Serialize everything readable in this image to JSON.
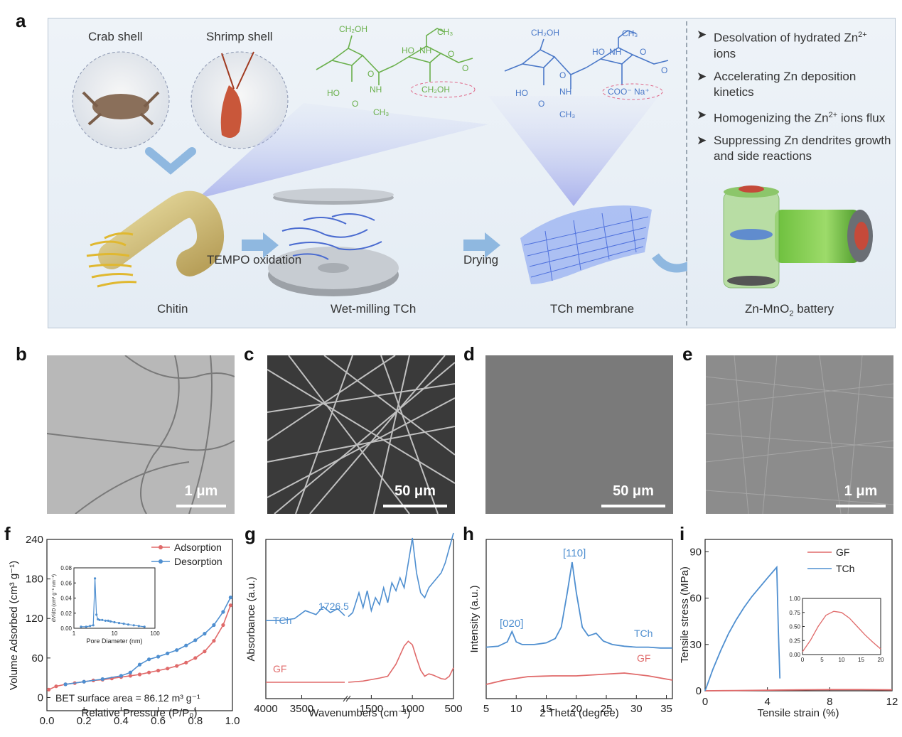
{
  "colors": {
    "blue": "#4f8fd0",
    "red": "#e06a6a",
    "green_structure": "#6ab04c",
    "blue_structure": "#4a78c8"
  },
  "panel_a": {
    "letter": "a",
    "crab_label": "Crab shell",
    "shrimp_label": "Shrimp shell",
    "chitin_label": "Chitin",
    "tempo_label": "TEMPO oxidation",
    "wetmilling_label": "Wet-milling TCh",
    "drying_label": "Drying",
    "membrane_label": "TCh membrane",
    "battery_label_pre": "Zn-MnO",
    "battery_label_sub": "2",
    "battery_label_post": " battery",
    "bullet_marker": "➤",
    "bullets": [
      {
        "pre": "Desolvation of hydrated Zn",
        "sup": "2+",
        "post": " ions"
      },
      {
        "pre": "Accelerating Zn deposition kinetics",
        "sup": "",
        "post": ""
      },
      {
        "pre": "Homogenizing the Zn",
        "sup": "2+",
        "post": " ions flux"
      },
      {
        "pre": "Suppressing Zn dendrites growth and side reactions",
        "sup": "",
        "post": ""
      }
    ],
    "chem_green": {
      "ch2oh_1": "CH₂OH",
      "ho_1": "HO",
      "o_1": "O",
      "nh_1": "NH",
      "o_2": "O",
      "ch3_1": "CH₃",
      "ch3_2": "CH₃",
      "ho_2": "HO",
      "nh_2": "NH",
      "o_3": "O",
      "ch2oh_2": "CH₂OH",
      "o_4": "O"
    },
    "chem_blue": {
      "ch2oh_1": "CH₂OH",
      "ho_1": "HO",
      "o_1": "O",
      "nh_1": "NH",
      "o_2": "O",
      "ch3_1": "CH₃",
      "ch3_2": "CH₃",
      "ho_2": "HO",
      "nh_2": "NH",
      "o_3": "O",
      "coo": "COO⁻ Na⁺",
      "o_4": "O"
    }
  },
  "panel_b": {
    "letter": "b",
    "scale": "1 μm"
  },
  "panel_c": {
    "letter": "c",
    "scale": "50 μm"
  },
  "panel_d": {
    "letter": "d",
    "scale": "50 μm"
  },
  "panel_e": {
    "letter": "e",
    "scale": "1 μm"
  },
  "chart_data": [
    {
      "panel": "f",
      "type": "line",
      "xlabel": "Relative Pressure (P/P₀)",
      "ylabel": "Volume Adsorbed (cm³ g⁻¹)",
      "xlim": [
        0.0,
        1.0
      ],
      "ylim": [
        -20,
        240
      ],
      "xticks": [
        "0.0",
        "0.2",
        "0.4",
        "0.6",
        "0.8",
        "1.0"
      ],
      "yticks": [
        "0",
        "60",
        "120",
        "180",
        "240"
      ],
      "annotation": "BET surface area = 86.12 m³ g⁻¹",
      "legend_position": "top-right",
      "series": [
        {
          "name": "Adsorption",
          "color": "#e06a6a",
          "x": [
            0.01,
            0.05,
            0.1,
            0.15,
            0.2,
            0.25,
            0.3,
            0.35,
            0.4,
            0.45,
            0.5,
            0.55,
            0.6,
            0.65,
            0.7,
            0.75,
            0.8,
            0.85,
            0.9,
            0.95,
            0.99
          ],
          "y": [
            12,
            17,
            20,
            22,
            24,
            26,
            27,
            29,
            31,
            33,
            35,
            38,
            41,
            44,
            48,
            53,
            60,
            70,
            86,
            110,
            140
          ]
        },
        {
          "name": "Desorption",
          "color": "#4f8fd0",
          "x": [
            0.99,
            0.95,
            0.9,
            0.85,
            0.8,
            0.75,
            0.7,
            0.65,
            0.6,
            0.55,
            0.5,
            0.45,
            0.4,
            0.3,
            0.2,
            0.1
          ],
          "y": [
            152,
            130,
            110,
            97,
            87,
            79,
            72,
            67,
            62,
            58,
            50,
            38,
            33,
            28,
            24,
            20
          ]
        }
      ],
      "inset": {
        "type": "line",
        "xlabel": "Pore Diameter (nm)",
        "ylabel": "dV/dD (cm³ g⁻¹ nm⁻¹)",
        "xscale": "log",
        "xlim": [
          1,
          100
        ],
        "ylim": [
          0,
          0.08
        ],
        "xticks": [
          "1",
          "10",
          "100"
        ],
        "yticks": [
          "0.00",
          "0.02",
          "0.04",
          "0.06",
          "0.08"
        ],
        "x": [
          1.5,
          2,
          2.5,
          3,
          3.3,
          3.6,
          3.9,
          4.3,
          5,
          6,
          7,
          8,
          10,
          13,
          17,
          22,
          30,
          40,
          55
        ],
        "y": [
          0.002,
          0.002,
          0.003,
          0.004,
          0.066,
          0.018,
          0.012,
          0.011,
          0.011,
          0.01,
          0.01,
          0.009,
          0.008,
          0.007,
          0.006,
          0.005,
          0.004,
          0.003,
          0.002
        ]
      }
    },
    {
      "panel": "g",
      "type": "line",
      "xlabel": "Wavenumbers (cm⁻¹)",
      "ylabel": "Absorbance (a.u.)",
      "xticks": [
        "4000",
        "3500",
        "1500",
        "1000",
        "500"
      ],
      "annotation": "1726.5",
      "series": [
        {
          "name": "TCh",
          "color": "#4f8fd0",
          "x": [
            4000,
            3800,
            3600,
            3450,
            3300,
            3200,
            3100,
            3000,
            2900,
            1780,
            1726,
            1650,
            1600,
            1550,
            1500,
            1450,
            1400,
            1350,
            1300,
            1250,
            1200,
            1150,
            1100,
            1050,
            1000,
            950,
            900,
            850,
            800,
            750,
            700,
            650,
            600,
            550,
            500
          ],
          "y": [
            0.12,
            0.12,
            0.14,
            0.22,
            0.18,
            0.26,
            0.2,
            0.24,
            0.17,
            0.16,
            0.2,
            0.4,
            0.25,
            0.42,
            0.22,
            0.35,
            0.28,
            0.45,
            0.3,
            0.5,
            0.42,
            0.55,
            0.45,
            0.7,
            0.95,
            0.6,
            0.4,
            0.35,
            0.45,
            0.5,
            0.55,
            0.6,
            0.7,
            0.85,
            1.0
          ]
        },
        {
          "name": "GF",
          "color": "#e06a6a",
          "x": [
            4000,
            3500,
            3000,
            2900,
            1780,
            1600,
            1400,
            1300,
            1200,
            1150,
            1100,
            1050,
            1000,
            950,
            900,
            850,
            800,
            750,
            700,
            650,
            600,
            550,
            500
          ],
          "y": [
            0.0,
            0.0,
            0.0,
            0.0,
            0.0,
            0.02,
            0.07,
            0.1,
            0.3,
            0.45,
            0.6,
            0.68,
            0.62,
            0.4,
            0.2,
            0.1,
            0.14,
            0.12,
            0.09,
            0.06,
            0.05,
            0.1,
            0.24
          ]
        }
      ]
    },
    {
      "panel": "h",
      "type": "line",
      "xlabel": "2 Theta (degree)",
      "ylabel": "Intensity (a.u.)",
      "xlim": [
        5,
        36
      ],
      "xticks": [
        "5",
        "10",
        "15",
        "20",
        "25",
        "30",
        "35"
      ],
      "annotations": [
        "[020]",
        "[110]"
      ],
      "series": [
        {
          "name": "TCh",
          "color": "#4f8fd0",
          "x": [
            5,
            7,
            8.5,
            9.3,
            10,
            11,
            13,
            15,
            16.5,
            17.5,
            18.5,
            19.3,
            20,
            21,
            22,
            23.3,
            24.5,
            26,
            28,
            30,
            32,
            34,
            36
          ],
          "y": [
            0.02,
            0.03,
            0.08,
            0.2,
            0.08,
            0.05,
            0.05,
            0.07,
            0.12,
            0.25,
            0.65,
            1.0,
            0.65,
            0.25,
            0.15,
            0.18,
            0.09,
            0.05,
            0.03,
            0.02,
            0.02,
            0.01,
            0.01
          ]
        },
        {
          "name": "GF",
          "color": "#e06a6a",
          "x": [
            5,
            8,
            12,
            16,
            20,
            24,
            28,
            32,
            36
          ],
          "y": [
            0.0,
            0.06,
            0.11,
            0.12,
            0.12,
            0.14,
            0.16,
            0.12,
            0.06
          ]
        }
      ]
    },
    {
      "panel": "i",
      "type": "line",
      "xlabel": "Tensile strain (%)",
      "ylabel": "Tensile stress (MPa)",
      "xlim": [
        0,
        12
      ],
      "ylim": [
        0,
        98
      ],
      "xticks": [
        "0",
        "4",
        "8",
        "12"
      ],
      "yticks": [
        "0",
        "30",
        "60",
        "90"
      ],
      "legend_position": "top-right",
      "series": [
        {
          "name": "GF",
          "color": "#e06a6a",
          "x": [
            0,
            2,
            4,
            6,
            8,
            10,
            12
          ],
          "y": [
            0,
            0.2,
            0.4,
            0.6,
            0.8,
            0.8,
            0.6
          ]
        },
        {
          "name": "TCh",
          "color": "#4f8fd0",
          "x": [
            0,
            0.5,
            1,
            1.5,
            2,
            2.5,
            3,
            3.5,
            4,
            4.6,
            4.7,
            4.8
          ],
          "y": [
            0,
            14,
            26,
            37,
            46,
            54,
            61,
            67,
            73,
            80,
            40,
            8
          ]
        }
      ],
      "inset": {
        "type": "line",
        "xlim": [
          0,
          20
        ],
        "ylim": [
          0,
          1.0
        ],
        "xticks": [
          "0",
          "5",
          "10",
          "15",
          "20"
        ],
        "yticks": [
          "0.00",
          "0.25",
          "0.50",
          "0.75",
          "1.00"
        ],
        "x": [
          0,
          2,
          4,
          6,
          8,
          10,
          12,
          14,
          16,
          18,
          20
        ],
        "y": [
          0.05,
          0.25,
          0.5,
          0.7,
          0.77,
          0.75,
          0.65,
          0.5,
          0.35,
          0.22,
          0.1
        ]
      }
    }
  ]
}
